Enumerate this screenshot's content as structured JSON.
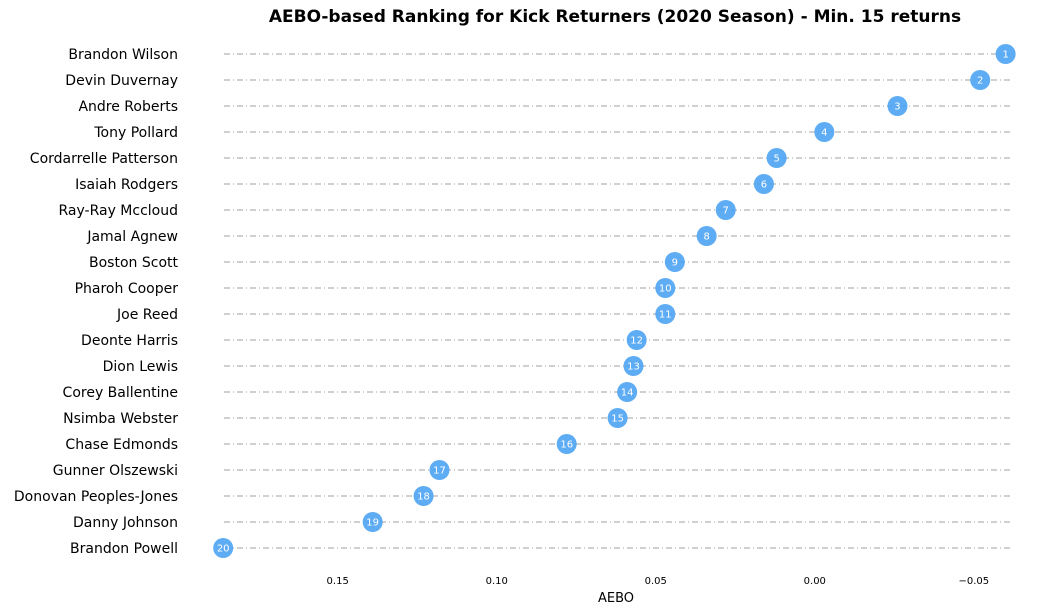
{
  "chart_data": {
    "type": "scatter",
    "title": "AEBO-based Ranking for Kick Returners (2020 Season) - Min. 15 returns",
    "xlabel": "AEBO",
    "ylabel": "",
    "x_inverted": true,
    "xlim": [
      0.187,
      -0.062
    ],
    "xticks": [
      0.15,
      0.1,
      0.05,
      0.0,
      -0.05
    ],
    "xtick_labels": [
      "0.15",
      "0.10",
      "0.05",
      "0.00",
      "−0.05"
    ],
    "grid": "horizontal dash-dot row lines",
    "legend": "none",
    "marker_color": "#4da3f3",
    "points": [
      {
        "player": "Brandon Wilson",
        "rank": "1",
        "aebo": -0.06
      },
      {
        "player": "Devin Duvernay",
        "rank": "2",
        "aebo": -0.052
      },
      {
        "player": "Andre Roberts",
        "rank": "3",
        "aebo": -0.026
      },
      {
        "player": "Tony Pollard",
        "rank": "4",
        "aebo": -0.003
      },
      {
        "player": "Cordarrelle Patterson",
        "rank": "5",
        "aebo": 0.012
      },
      {
        "player": "Isaiah Rodgers",
        "rank": "6",
        "aebo": 0.016
      },
      {
        "player": "Ray-Ray Mccloud",
        "rank": "7",
        "aebo": 0.028
      },
      {
        "player": "Jamal Agnew",
        "rank": "8",
        "aebo": 0.034
      },
      {
        "player": "Boston Scott",
        "rank": "9",
        "aebo": 0.044
      },
      {
        "player": "Pharoh Cooper",
        "rank": "10",
        "aebo": 0.047
      },
      {
        "player": "Joe Reed",
        "rank": "11",
        "aebo": 0.047
      },
      {
        "player": "Deonte Harris",
        "rank": "12",
        "aebo": 0.056
      },
      {
        "player": "Dion Lewis",
        "rank": "13",
        "aebo": 0.057
      },
      {
        "player": "Corey Ballentine",
        "rank": "14",
        "aebo": 0.059
      },
      {
        "player": "Nsimba Webster",
        "rank": "15",
        "aebo": 0.062
      },
      {
        "player": "Chase Edmonds",
        "rank": "16",
        "aebo": 0.078
      },
      {
        "player": "Gunner Olszewski",
        "rank": "17",
        "aebo": 0.118
      },
      {
        "player": "Donovan Peoples-Jones",
        "rank": "18",
        "aebo": 0.123
      },
      {
        "player": "Danny Johnson",
        "rank": "19",
        "aebo": 0.139
      },
      {
        "player": "Brandon Powell",
        "rank": "20",
        "aebo": 0.186
      }
    ]
  }
}
